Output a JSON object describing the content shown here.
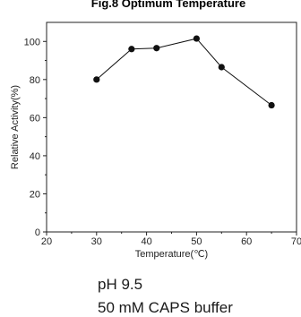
{
  "chart_data": {
    "type": "line",
    "title": "Fig.8 Optimum Temperature",
    "xlabel": "Temperature(℃)",
    "ylabel": "Relative Activity(%)",
    "xlim": [
      20,
      70
    ],
    "ylim": [
      0,
      110
    ],
    "xticks": [
      "20",
      "30",
      "40",
      "50",
      "60",
      "70"
    ],
    "yticks": [
      "0",
      "20",
      "40",
      "60",
      "80",
      "100"
    ],
    "grid": false,
    "series": [
      {
        "x": [
          30,
          37,
          42,
          50,
          55,
          65
        ],
        "y": [
          80,
          96,
          96.5,
          101.5,
          86.5,
          66.5
        ]
      }
    ]
  },
  "notes": {
    "ph": "pH 9.5",
    "buffer": "50 mM CAPS buffer"
  }
}
